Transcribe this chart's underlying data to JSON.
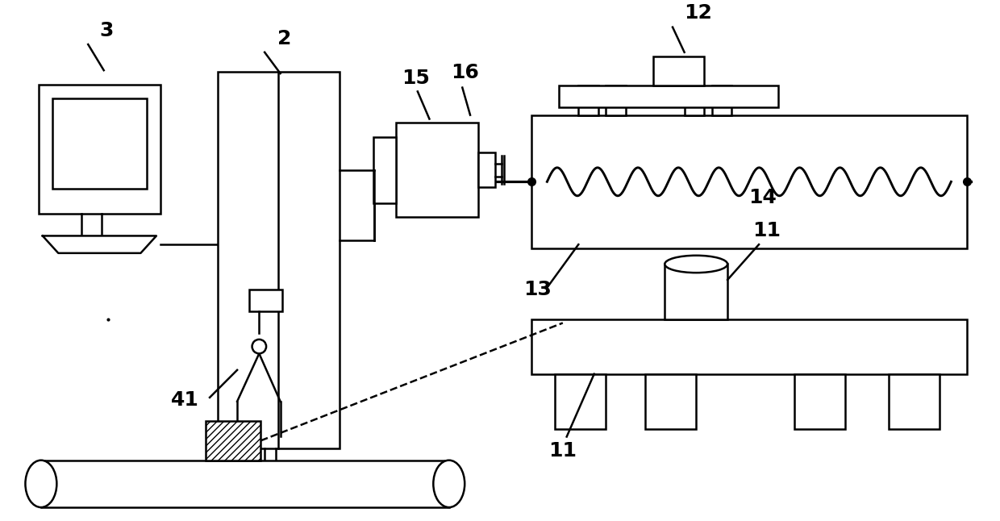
{
  "bg_color": "#ffffff",
  "lc": "#000000",
  "lw": 1.8,
  "fw": 12.4,
  "fh": 6.46,
  "dpi": 100
}
